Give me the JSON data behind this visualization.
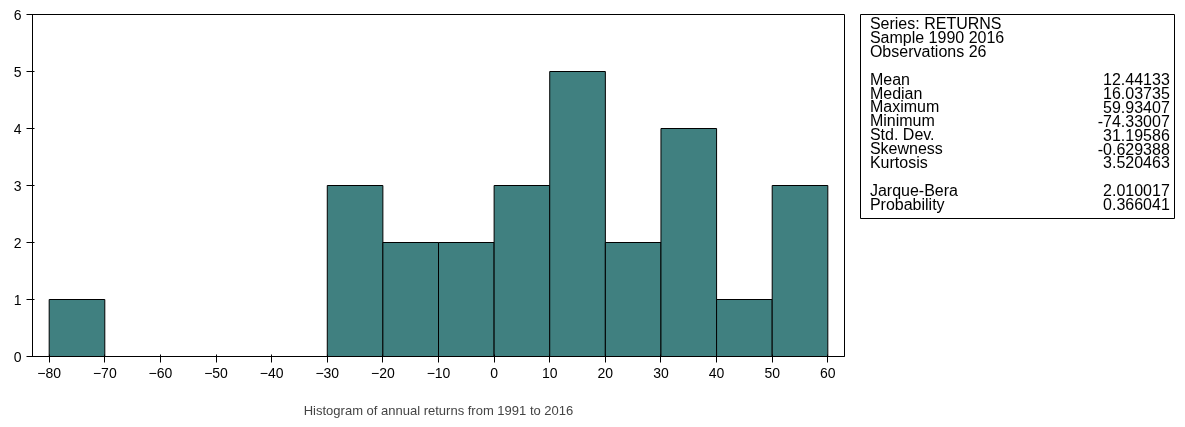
{
  "chart_data": [
    {
      "type": "histogram",
      "xlabel": "Histogram of annual returns from 1991 to 2016",
      "bins": [
        -80,
        -70,
        -60,
        -50,
        -40,
        -30,
        -20,
        -10,
        0,
        10,
        20,
        30,
        40,
        50,
        60
      ],
      "values": [
        1,
        0,
        0,
        0,
        0,
        3,
        2,
        2,
        3,
        5,
        2,
        4,
        1,
        3
      ],
      "color": "#408080",
      "xlim": [
        -83,
        63
      ],
      "ylim": [
        0,
        6
      ],
      "xticks": [
        -80,
        -70,
        -60,
        -50,
        -40,
        -30,
        -20,
        -10,
        0,
        10,
        20,
        30,
        40,
        50,
        60
      ],
      "yticks": [
        0,
        1,
        2,
        3,
        4,
        5,
        6
      ],
      "grid": false
    },
    {
      "type": "other",
      "annotations": [
        "Series: RETURNS",
        "Sample 1990 2016",
        "Observations 26"
      ],
      "categories": [
        "Mean",
        "Median",
        "Maximum",
        "Minimum",
        "Std. Dev.",
        "Skewness",
        "Kurtosis",
        "Jarque-Bera",
        "Probability"
      ],
      "values": [
        12.44133,
        16.03735,
        59.93407,
        -74.33007,
        31.19586,
        -0.629388,
        3.520463,
        2.010017,
        0.366041
      ],
      "data_labels": true
    }
  ]
}
